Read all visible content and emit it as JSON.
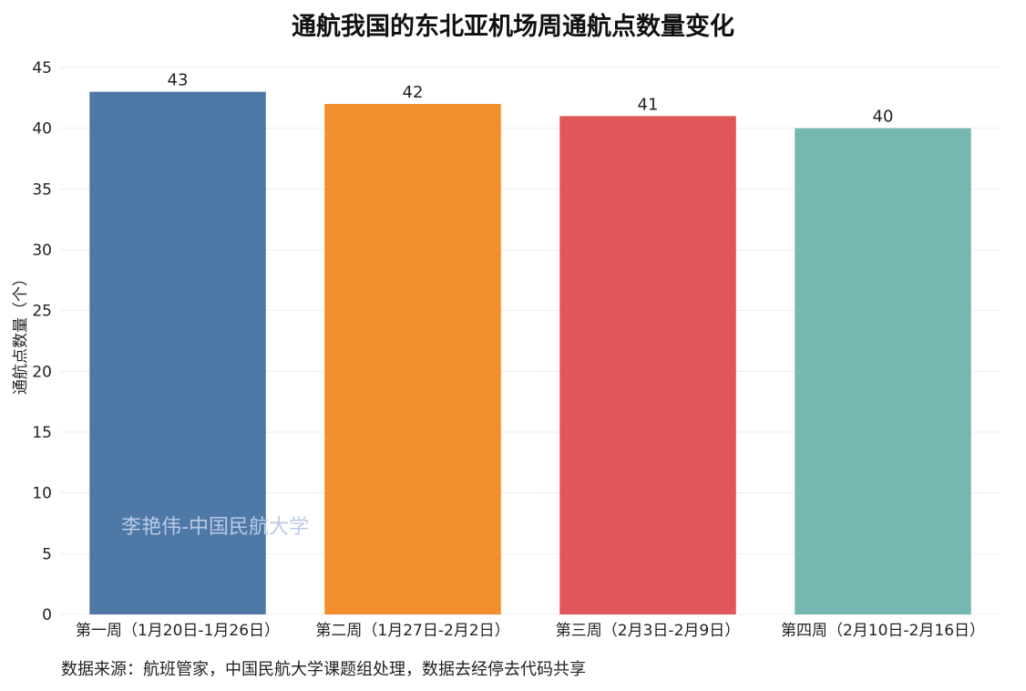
{
  "chart_data": {
    "type": "bar",
    "title": "通航我国的东北亚机场周通航点数量变化",
    "xlabel": "",
    "ylabel": "通航点数量（个）",
    "categories": [
      "第一周（1月20日-1月26日）",
      "第二周（1月27日-2月2日）",
      "第三周（2月3日-2月9日）",
      "第四周（2月10日-2月16日）"
    ],
    "values": [
      43,
      42,
      41,
      40
    ],
    "colors": [
      "#4e79a7",
      "#f28e2b",
      "#e15759",
      "#76b7b2"
    ],
    "ylim": [
      0,
      45
    ],
    "yticks": [
      0,
      5,
      10,
      15,
      20,
      25,
      30,
      35,
      40,
      45
    ],
    "grid": true,
    "legend": "none",
    "watermark": "李艳伟-中国民航大学",
    "source_note": "数据来源：航班管家，中国民航大学课题组处理，数据去经停去代码共享"
  }
}
